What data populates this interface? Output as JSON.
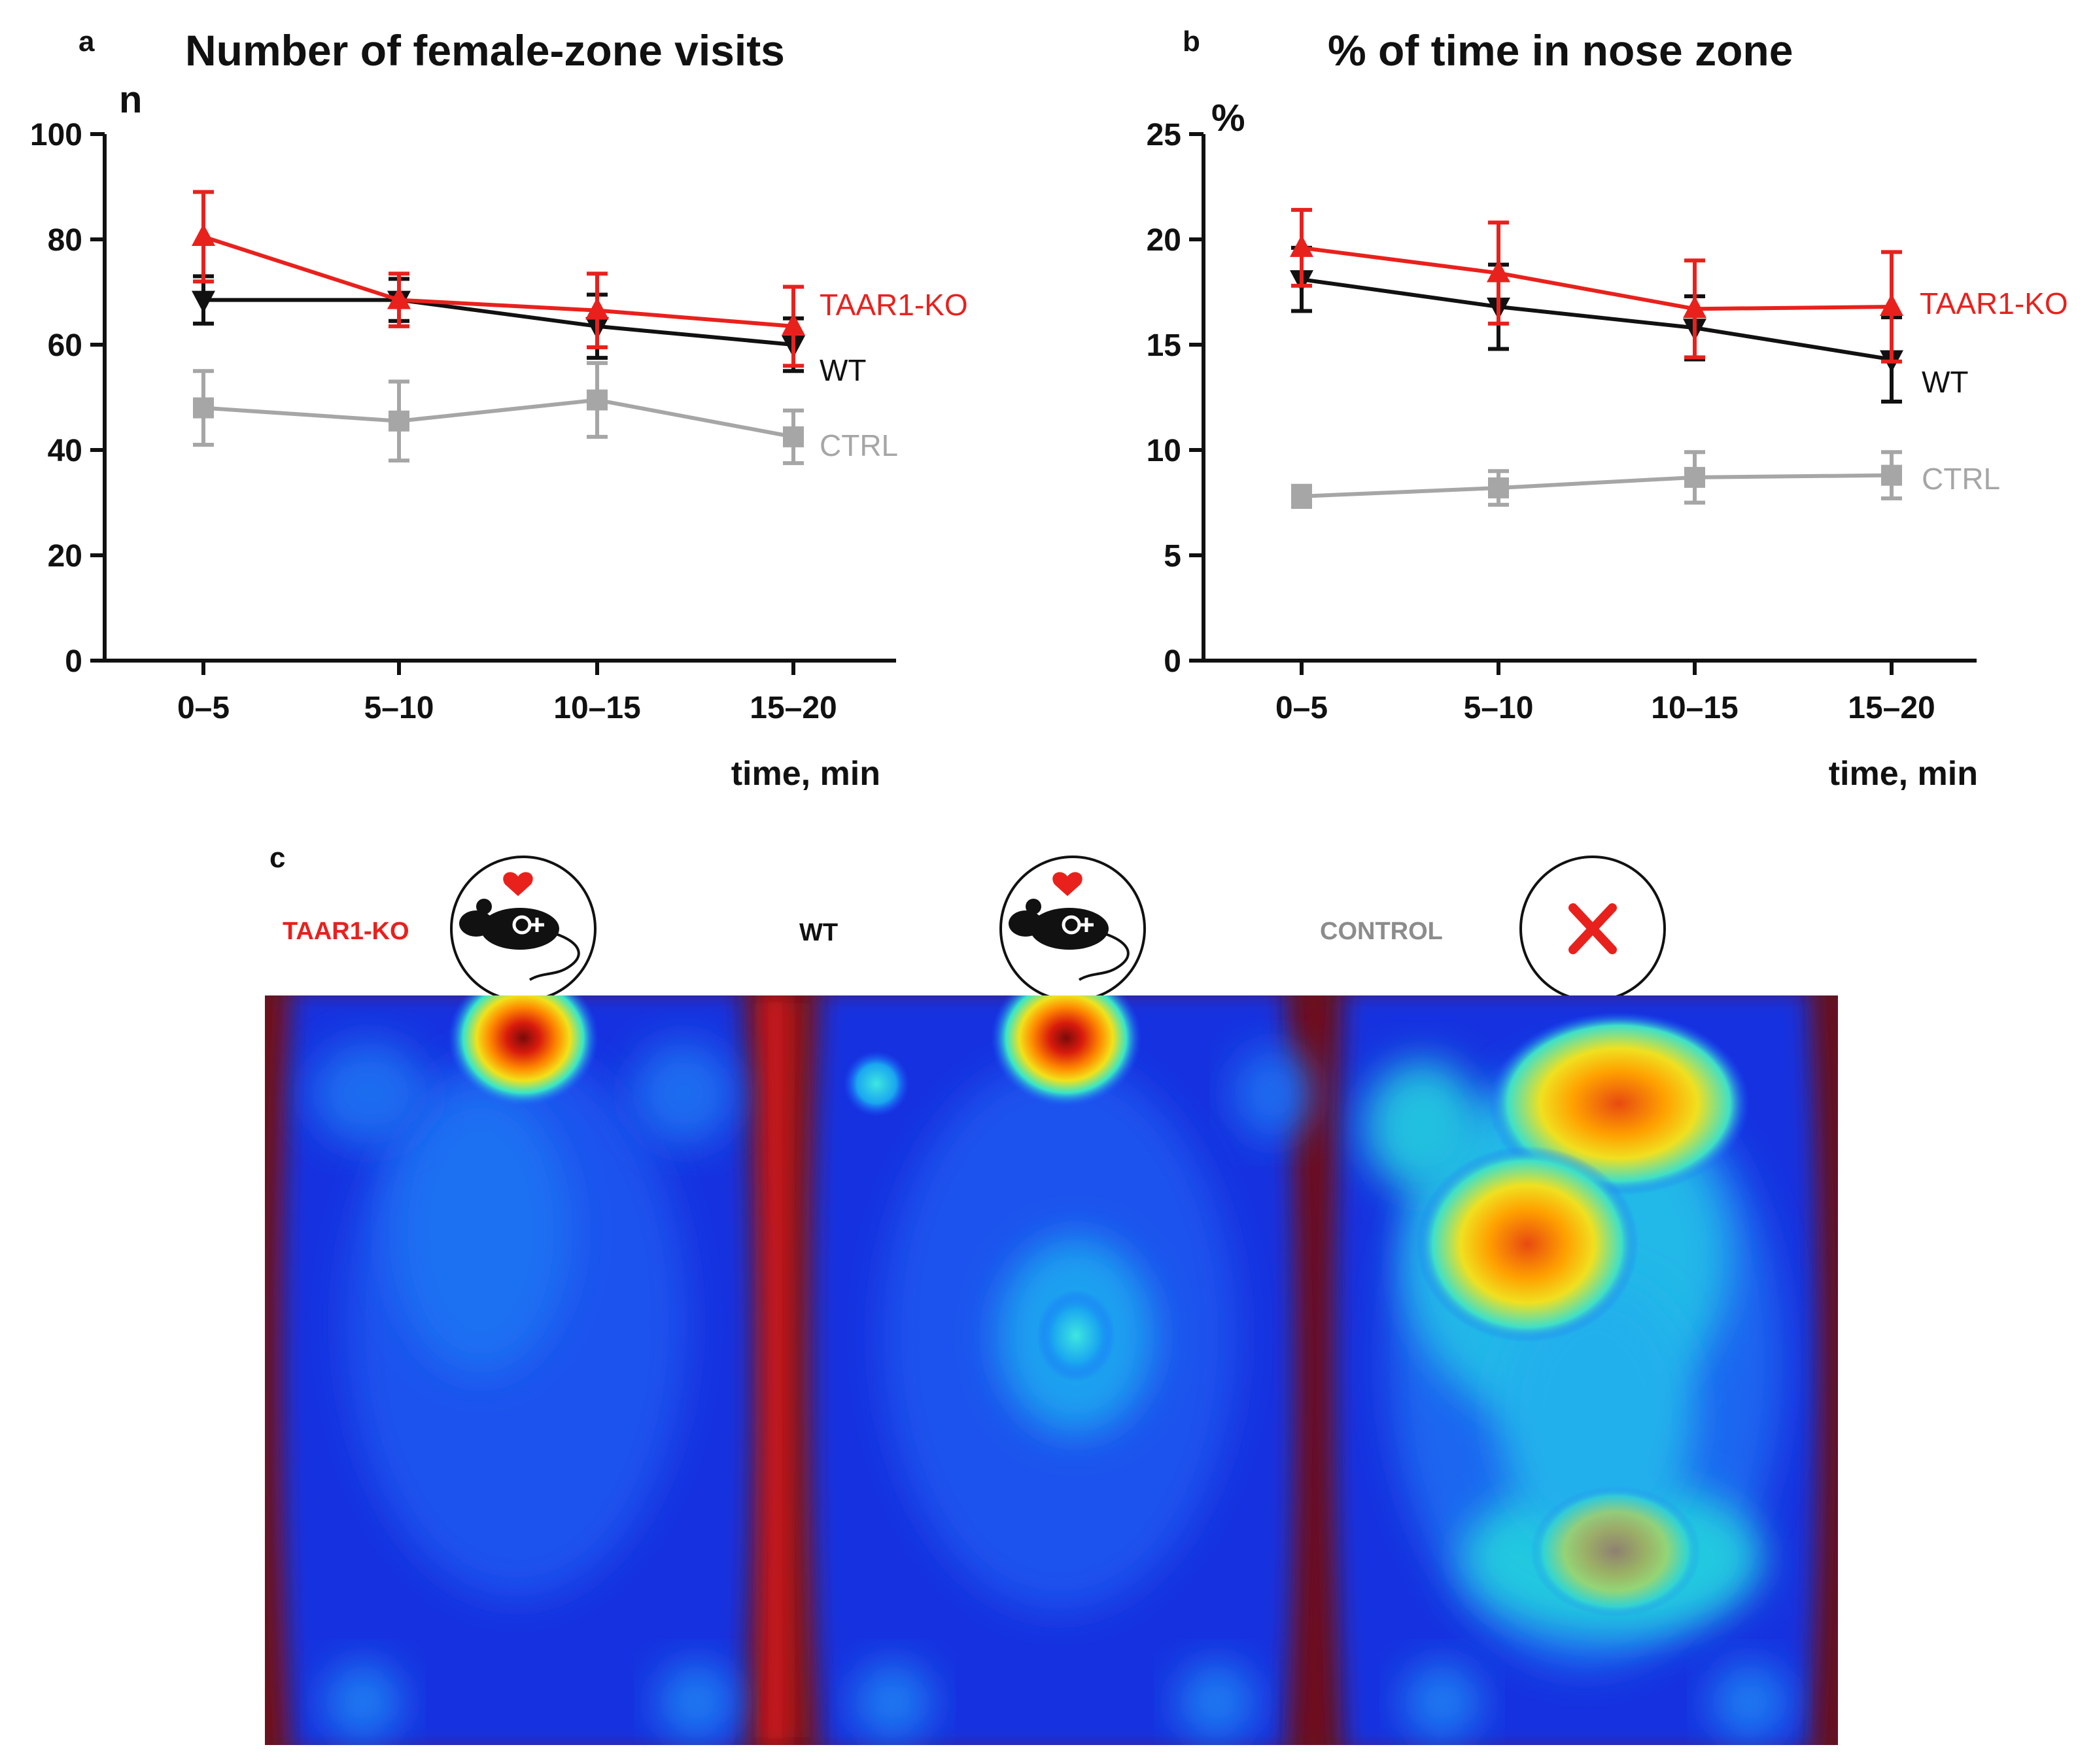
{
  "chart_data": [
    {
      "type": "line",
      "panel": "a",
      "title": "Number of female-zone visits",
      "ylabel": "n",
      "xlabel": "time, min",
      "categories": [
        "0–5",
        "5–10",
        "10–15",
        "15–20"
      ],
      "ylim": [
        0,
        100
      ],
      "yticks": [
        0,
        20,
        40,
        60,
        80,
        100
      ],
      "series": [
        {
          "name": "TAAR1-KO",
          "color": "#e8211d",
          "marker": "triangle-up",
          "values": [
            80.5,
            68.5,
            66.5,
            63.5
          ],
          "errors": [
            8.5,
            5,
            7,
            7.5
          ]
        },
        {
          "name": "WT",
          "color": "#111111",
          "marker": "triangle-down",
          "values": [
            68.5,
            68.5,
            63.5,
            60
          ],
          "errors": [
            4.5,
            4,
            6,
            5
          ]
        },
        {
          "name": "CTRL",
          "color": "#a6a6a6",
          "marker": "square",
          "values": [
            48,
            45.5,
            49.5,
            42.5
          ],
          "errors": [
            7,
            7.5,
            7,
            5
          ]
        }
      ]
    },
    {
      "type": "line",
      "panel": "b",
      "title": "% of time in nose zone",
      "ylabel": "%",
      "xlabel": "time, min",
      "categories": [
        "0–5",
        "5–10",
        "10–15",
        "15–20"
      ],
      "ylim": [
        0,
        25
      ],
      "yticks": [
        0,
        5,
        10,
        15,
        20,
        25
      ],
      "series": [
        {
          "name": "TAAR1-KO",
          "color": "#e8211d",
          "marker": "triangle-up",
          "values": [
            19.6,
            18.4,
            16.7,
            16.8
          ],
          "errors": [
            1.8,
            2.4,
            2.3,
            2.6
          ]
        },
        {
          "name": "WT",
          "color": "#111111",
          "marker": "triangle-down",
          "values": [
            18.1,
            16.8,
            15.8,
            14.3
          ],
          "errors": [
            1.5,
            2,
            1.5,
            2
          ]
        },
        {
          "name": "CTRL",
          "color": "#a6a6a6",
          "marker": "square",
          "values": [
            7.8,
            8.2,
            8.7,
            8.8
          ],
          "errors": [
            0.5,
            0.8,
            1.2,
            1.1
          ]
        }
      ]
    }
  ],
  "heatmap": {
    "panel_letter": "c",
    "groups": [
      {
        "label": "TAAR1-KO",
        "color": "#e8211d",
        "icon": "female-mouse-heart-icon"
      },
      {
        "label": "WT",
        "color": "#111111",
        "icon": "female-mouse-heart-icon"
      },
      {
        "label": "CONTROL",
        "color": "#8c8c8c",
        "icon": "red-x-icon"
      }
    ]
  }
}
